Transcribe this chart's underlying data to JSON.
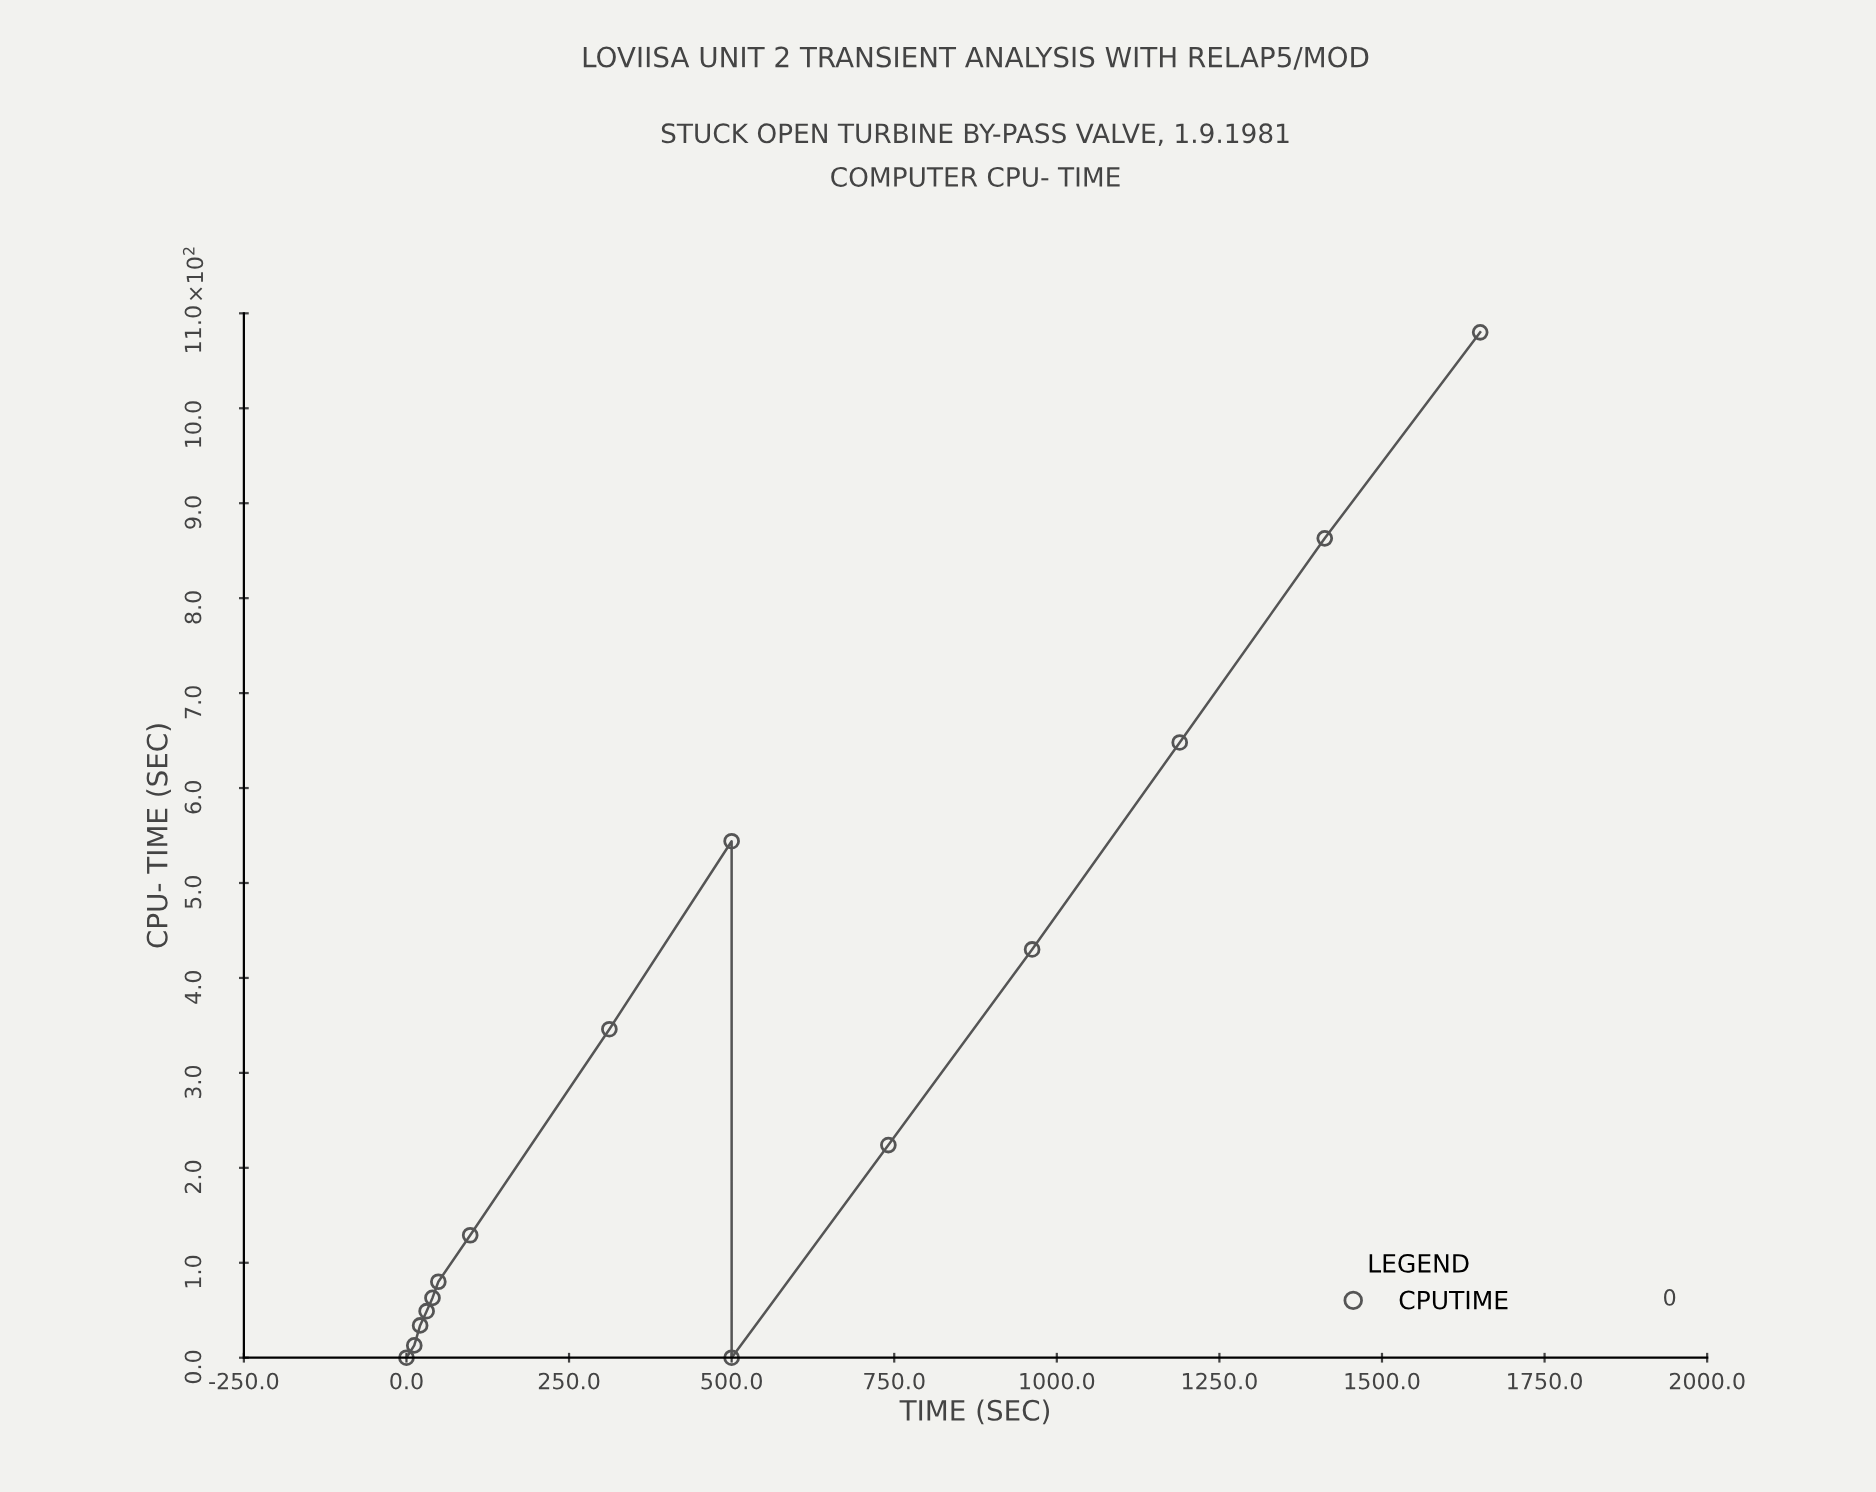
{
  "chart_data": {
    "type": "line",
    "title": "LOVIISA UNIT 2 TRANSIENT ANALYSIS WITH RELAP5/MOD",
    "subtitle": "STUCK OPEN TURBINE BY-PASS VALVE, 1.9.1981\nCOMPUTER CPU- TIME",
    "xlabel": "TIME (SEC)",
    "ylabel": "CPU- TIME (SEC)",
    "legend_title": "LEGEND",
    "annotations": [
      "×10$^{2}$",
      "0"
    ],
    "series": [
      {
        "name": "CPUTIME",
        "color": "#555555",
        "x": [
          0,
          12,
          21,
          31,
          40,
          49,
          98,
          312,
          500,
          500,
          741,
          962,
          1189,
          1412,
          1651
        ],
        "values": [
          0,
          0.13,
          0.34,
          0.49,
          0.63,
          0.8,
          1.29,
          3.46,
          5.44,
          0,
          2.24,
          4.3,
          6.48,
          8.63,
          10.8
        ]
      }
    ],
    "xlim": [
      -250,
      2000
    ],
    "xticks": [
      {
        "value": -250,
        "label": "-250.0"
      },
      {
        "value": 0,
        "label": "0.0"
      },
      {
        "value": 250,
        "label": "250.0"
      },
      {
        "value": 500,
        "label": "500.0"
      },
      {
        "value": 750,
        "label": "750.0"
      },
      {
        "value": 1000,
        "label": "1000.0"
      },
      {
        "value": 1250,
        "label": "1250.0"
      },
      {
        "value": 1500,
        "label": "1500.0"
      },
      {
        "value": 1750,
        "label": "1750.0"
      },
      {
        "value": 2000,
        "label": "2000.0"
      }
    ],
    "ylim": [
      0,
      11
    ],
    "yticks": [
      {
        "value": 0,
        "label": "0.0"
      },
      {
        "value": 1,
        "label": "1.0"
      },
      {
        "value": 2,
        "label": "2.0"
      },
      {
        "value": 3,
        "label": "3.0"
      },
      {
        "value": 4,
        "label": "4.0"
      },
      {
        "value": 5,
        "label": "5.0"
      },
      {
        "value": 6,
        "label": "6.0"
      },
      {
        "value": 7,
        "label": "7.0"
      },
      {
        "value": 8,
        "label": "8.0"
      },
      {
        "value": 9,
        "label": "9.0"
      },
      {
        "value": 10,
        "label": "10.0"
      },
      {
        "value": 11,
        "label": "11.0"
      }
    ],
    "grid": false,
    "legend": "bottom right",
    "marker": "circle",
    "line_style": "solid"
  }
}
